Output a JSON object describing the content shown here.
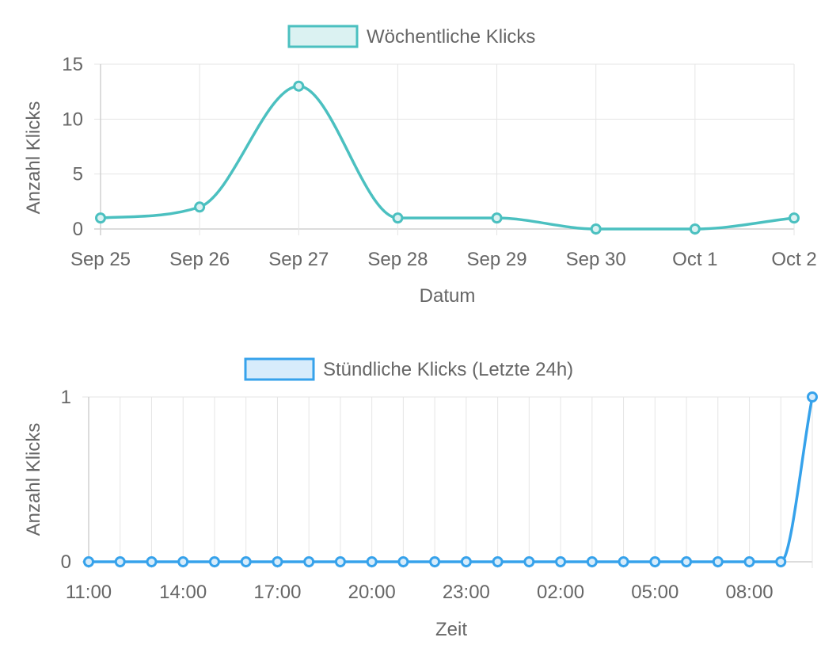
{
  "chart_data": [
    {
      "type": "line",
      "legend_position": "top",
      "grid": true,
      "xlabel": "Datum",
      "ylabel": "Anzahl Klicks",
      "ylim": [
        0,
        15
      ],
      "yticks": [
        "0",
        "5",
        "10",
        "15"
      ],
      "categories": [
        "Sep 25",
        "Sep 26",
        "Sep 27",
        "Sep 28",
        "Sep 29",
        "Sep 30",
        "Oct 1",
        "Oct 2"
      ],
      "series": [
        {
          "name": "Wöchentliche Klicks",
          "color": "#4bc0c0",
          "fill": "#dbf2f2",
          "values": [
            1,
            2,
            13,
            1,
            1,
            0,
            0,
            1
          ]
        }
      ]
    },
    {
      "type": "line",
      "legend_position": "top",
      "grid": true,
      "xlabel": "Zeit",
      "ylabel": "Anzahl Klicks",
      "ylim": [
        0,
        1
      ],
      "yticks": [
        "0",
        "1"
      ],
      "x": [
        "11:00",
        "12:00",
        "13:00",
        "14:00",
        "15:00",
        "16:00",
        "17:00",
        "18:00",
        "19:00",
        "20:00",
        "21:00",
        "22:00",
        "23:00",
        "00:00",
        "01:00",
        "02:00",
        "03:00",
        "04:00",
        "05:00",
        "06:00",
        "07:00",
        "08:00",
        "09:00",
        "10:00"
      ],
      "xtick_labels": [
        "11:00",
        "14:00",
        "17:00",
        "20:00",
        "23:00",
        "02:00",
        "05:00",
        "08:00"
      ],
      "series": [
        {
          "name": "Stündliche Klicks (Letzte 24h)",
          "color": "#36a2eb",
          "fill": "#d7ecfb",
          "values": [
            0,
            0,
            0,
            0,
            0,
            0,
            0,
            0,
            0,
            0,
            0,
            0,
            0,
            0,
            0,
            0,
            0,
            0,
            0,
            0,
            0,
            0,
            0,
            1
          ]
        }
      ]
    }
  ]
}
